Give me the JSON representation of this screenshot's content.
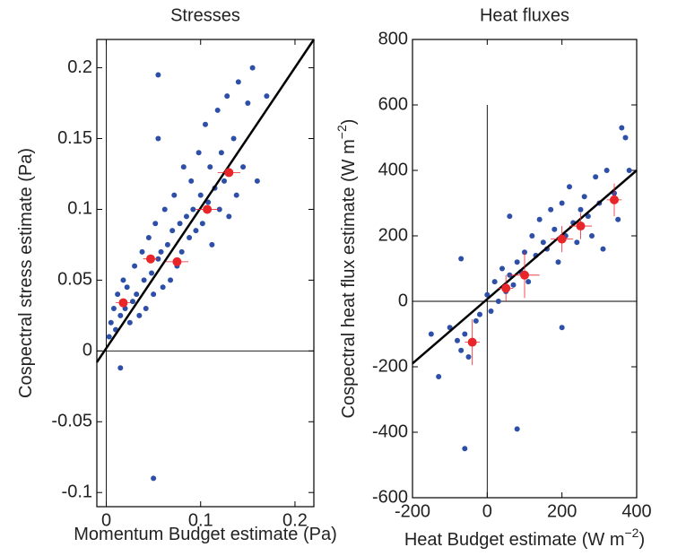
{
  "chart_data": [
    {
      "type": "scatter",
      "title": "Stresses",
      "x_label": "Momentum Budget estimate (Pa)",
      "y_label": "Cospectral stress estimate (Pa)",
      "xlim": [
        -0.01,
        0.22
      ],
      "ylim": [
        -0.11,
        0.22
      ],
      "xticks": [
        0,
        0.1,
        0.2
      ],
      "yticks": [
        -0.1,
        -0.05,
        0,
        0.05,
        0.1,
        0.15,
        0.2
      ],
      "points": {
        "color": "#2e4fa8",
        "x": [
          0.005,
          0.008,
          0.01,
          0.012,
          0.015,
          0.018,
          0.02,
          0.022,
          0.025,
          0.028,
          0.03,
          0.032,
          0.035,
          0.038,
          0.04,
          0.042,
          0.045,
          0.048,
          0.05,
          0.052,
          0.055,
          0.055,
          0.058,
          0.06,
          0.062,
          0.065,
          0.068,
          0.07,
          0.072,
          0.075,
          0.078,
          0.08,
          0.082,
          0.085,
          0.088,
          0.09,
          0.092,
          0.095,
          0.098,
          0.1,
          0.102,
          0.105,
          0.108,
          0.11,
          0.112,
          0.115,
          0.118,
          0.12,
          0.122,
          0.125,
          0.128,
          0.13,
          0.135,
          0.138,
          0.14,
          0.145,
          0.15,
          0.155,
          0.16,
          0.17,
          0.05,
          0.015,
          0.003,
          0.055
        ],
        "y": [
          0.02,
          0.03,
          0.015,
          0.04,
          0.025,
          0.05,
          0.03,
          0.045,
          0.02,
          0.035,
          0.06,
          0.04,
          0.025,
          0.07,
          0.05,
          0.03,
          0.08,
          0.055,
          0.04,
          0.09,
          0.065,
          0.15,
          0.07,
          0.045,
          0.1,
          0.075,
          0.05,
          0.085,
          0.11,
          0.06,
          0.09,
          0.07,
          0.13,
          0.095,
          0.08,
          0.12,
          0.1,
          0.085,
          0.14,
          0.11,
          0.09,
          0.16,
          0.105,
          0.13,
          0.075,
          0.115,
          0.17,
          0.1,
          0.14,
          0.12,
          0.18,
          0.095,
          0.15,
          0.11,
          0.19,
          0.13,
          0.175,
          0.2,
          0.12,
          0.18,
          -0.09,
          -0.012,
          0.01,
          0.195
        ]
      },
      "means": {
        "color": "#e8262a",
        "x": [
          0.018,
          0.047,
          0.075,
          0.107,
          0.13
        ],
        "y": [
          0.034,
          0.065,
          0.063,
          0.1,
          0.126
        ],
        "xerr": [
          0.008,
          0.008,
          0.012,
          0.012,
          0.012
        ],
        "yerr": [
          0.003,
          0.003,
          0.003,
          0.003,
          0.003
        ]
      },
      "fit": {
        "x": [
          -0.01,
          0.22
        ],
        "y": [
          -0.008,
          0.22
        ]
      },
      "vline": {
        "x": 0,
        "y": [
          -0.11,
          0.22
        ]
      },
      "hline": {
        "y": 0
      }
    },
    {
      "type": "scatter",
      "title": "Heat fluxes",
      "x_label": "Heat Budget estimate (W m",
      "x_label_sup": "−2",
      "x_label_end": ")",
      "y_label": "Cospectral heat flux estimate (W m",
      "y_label_sup": "−2",
      "y_label_end": ")",
      "xlim": [
        -200,
        400
      ],
      "ylim": [
        -600,
        800
      ],
      "xticks": [
        -200,
        0,
        200,
        400
      ],
      "yticks": [
        -600,
        -400,
        -200,
        0,
        200,
        400,
        600,
        800
      ],
      "points": {
        "color": "#2e4fa8",
        "x": [
          -150,
          -130,
          -100,
          -80,
          -70,
          -60,
          -50,
          -30,
          -20,
          0,
          10,
          20,
          30,
          40,
          50,
          60,
          70,
          80,
          90,
          100,
          110,
          120,
          130,
          140,
          150,
          160,
          170,
          180,
          190,
          200,
          210,
          220,
          230,
          240,
          250,
          260,
          270,
          280,
          290,
          300,
          310,
          320,
          340,
          350,
          360,
          370,
          380,
          -70,
          -60,
          80,
          200,
          60
        ],
        "y": [
          -100,
          -230,
          -80,
          -120,
          -150,
          -100,
          -170,
          -60,
          -40,
          20,
          -30,
          60,
          0,
          100,
          30,
          80,
          50,
          120,
          90,
          150,
          60,
          200,
          140,
          250,
          180,
          160,
          280,
          220,
          120,
          300,
          200,
          350,
          240,
          180,
          280,
          320,
          260,
          200,
          380,
          300,
          160,
          400,
          330,
          250,
          530,
          500,
          400,
          130,
          -450,
          -390,
          -80,
          260
        ]
      },
      "means": {
        "color": "#e8262a",
        "x": [
          -40,
          50,
          100,
          200,
          250,
          340
        ],
        "y": [
          -125,
          40,
          80,
          190,
          230,
          310
        ],
        "xerr": [
          20,
          20,
          40,
          30,
          30,
          20
        ],
        "yerr": [
          70,
          40,
          70,
          40,
          40,
          50
        ]
      },
      "fit": {
        "x": [
          -200,
          400
        ],
        "y": [
          -190,
          400
        ]
      },
      "vline": {
        "x": 0,
        "y": [
          -600,
          600
        ]
      },
      "hline": {
        "y": 0
      }
    }
  ]
}
